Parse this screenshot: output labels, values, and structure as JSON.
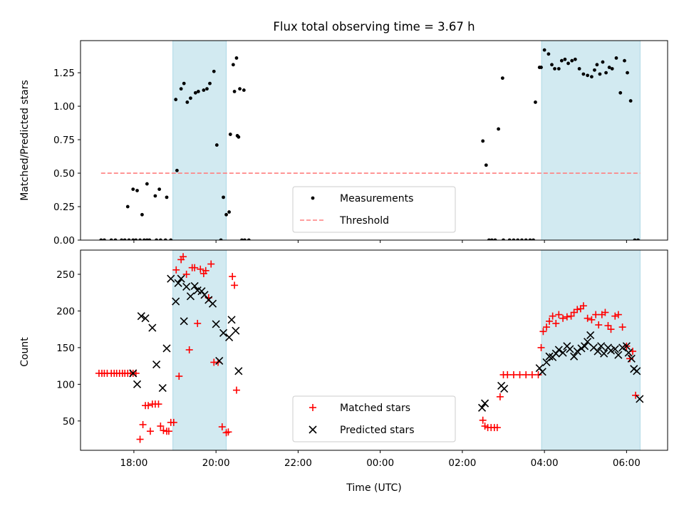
{
  "title": "Flux total observing time = 3.67 h",
  "colors": {
    "shade": "#add8e6",
    "threshold": "#ff7f7f",
    "matched": "#ff0000",
    "predicted": "#000000",
    "measurements": "#000000"
  },
  "chart_data": [
    {
      "type": "scatter",
      "panel": "top",
      "ylabel": "Matched/Predicted stars",
      "xlim": [
        -7.3,
        7.0
      ],
      "ylim": [
        0.0,
        1.49
      ],
      "y_ticks": [
        0.0,
        0.25,
        0.5,
        0.75,
        1.0,
        1.25
      ],
      "y_tick_labels": [
        "0.00",
        "0.25",
        "0.50",
        "0.75",
        "1.00",
        "1.25"
      ],
      "shaded_intervals": [
        [
          -5.05,
          -3.75
        ],
        [
          3.93,
          6.33
        ]
      ],
      "threshold": {
        "name": "Threshold",
        "y": 0.5,
        "x_range": [
          -6.8,
          6.33
        ]
      },
      "legend": {
        "placement": "lower center",
        "entries": [
          "Measurements",
          "Threshold"
        ]
      },
      "series": [
        {
          "name": "Measurements",
          "marker": "dot",
          "x": [
            -6.8,
            -6.72,
            -6.55,
            -6.45,
            -6.3,
            -6.22,
            -6.12,
            -6.02,
            -5.95,
            -5.85,
            -5.75,
            -5.68,
            -5.62,
            -5.45,
            -5.35,
            -5.23,
            -5.1,
            -4.98,
            -4.95,
            -4.85,
            -4.78,
            -4.7,
            -4.62,
            -4.5,
            -4.43,
            -4.3,
            -4.22,
            -4.15,
            -4.05,
            -3.98,
            -3.88,
            -3.82,
            -3.75,
            -3.68,
            -3.58,
            -3.5,
            -3.45,
            -3.37,
            -3.3,
            -3.2,
            -6.15,
            -6.02,
            -5.92,
            -5.8,
            -5.68,
            -5.48,
            -5.38,
            -5.2,
            -3.65,
            -3.55,
            -3.48,
            -3.42,
            -3.32,
            2.5,
            2.58,
            2.65,
            2.72,
            2.8,
            2.88,
            2.98,
            3.0,
            3.15,
            3.25,
            3.35,
            3.45,
            3.55,
            3.65,
            3.73,
            3.78,
            3.88,
            3.92,
            4.0,
            4.1,
            4.18,
            4.25,
            4.35,
            4.42,
            4.5,
            4.58,
            4.67,
            4.75,
            4.85,
            4.95,
            5.05,
            5.15,
            5.22,
            5.28,
            5.35,
            5.42,
            5.5,
            5.58,
            5.65,
            5.75,
            5.85,
            5.95,
            6.02,
            6.1,
            6.2,
            6.28
          ],
          "y": [
            0,
            0,
            0,
            0,
            0,
            0,
            0,
            0,
            0,
            0,
            0,
            0,
            0,
            0,
            0,
            0,
            0,
            1.05,
            0.52,
            1.13,
            1.17,
            1.03,
            1.06,
            1.1,
            1.11,
            1.12,
            1.13,
            1.17,
            1.26,
            0.71,
            0.0,
            0.32,
            0.19,
            0.21,
            1.31,
            1.36,
            0.77,
            0.0,
            0.0,
            0.0,
            0.25,
            0.38,
            0.37,
            0.19,
            0.42,
            0.33,
            0.38,
            0.32,
            0.79,
            1.11,
            0.78,
            1.13,
            1.12,
            0.74,
            0.56,
            0,
            0,
            0,
            0.83,
            1.21,
            0,
            0,
            0,
            0,
            0,
            0,
            0,
            0,
            1.03,
            1.29,
            1.29,
            1.42,
            1.39,
            1.31,
            1.28,
            1.28,
            1.34,
            1.35,
            1.32,
            1.34,
            1.35,
            1.28,
            1.24,
            1.23,
            1.22,
            1.27,
            1.31,
            1.24,
            1.33,
            1.25,
            1.29,
            1.28,
            1.36,
            1.1,
            1.34,
            1.25,
            1.04,
            0.0,
            0.0
          ]
        }
      ]
    },
    {
      "type": "scatter",
      "panel": "bottom",
      "xlabel": "Time (UTC)",
      "ylabel": "Count",
      "xlim": [
        -7.3,
        7.0
      ],
      "ylim": [
        10,
        283
      ],
      "x_ticks": [
        -6,
        -4,
        -2,
        0,
        2,
        4,
        6
      ],
      "x_tick_labels": [
        "18:00",
        "20:00",
        "22:00",
        "00:00",
        "02:00",
        "04:00",
        "06:00"
      ],
      "y_ticks": [
        50,
        100,
        150,
        200,
        250
      ],
      "y_tick_labels": [
        "50",
        "100",
        "150",
        "200",
        "250"
      ],
      "shaded_intervals": [
        [
          -5.05,
          -3.75
        ],
        [
          3.93,
          6.33
        ]
      ],
      "legend": {
        "placement": "lower center",
        "entries": [
          "Matched stars",
          "Predicted stars"
        ]
      },
      "series": [
        {
          "name": "Matched stars",
          "marker": "plus",
          "x": [
            -6.85,
            -6.78,
            -6.72,
            -6.65,
            -6.55,
            -6.48,
            -6.42,
            -6.35,
            -6.28,
            -6.22,
            -6.15,
            -6.08,
            -6.02,
            -5.95,
            -5.85,
            -5.78,
            -5.72,
            -5.65,
            -5.6,
            -5.55,
            -5.48,
            -5.4,
            -5.35,
            -5.28,
            -5.2,
            -5.15,
            -5.1,
            -5.03,
            -4.97,
            -4.9,
            -4.85,
            -4.8,
            -4.72,
            -4.65,
            -4.58,
            -4.52,
            -4.45,
            -4.38,
            -4.3,
            -4.25,
            -4.18,
            -4.12,
            -4.05,
            -3.95,
            -3.85,
            -3.75,
            -3.7,
            -3.6,
            -3.55,
            -3.5,
            -3.42,
            -3.35,
            2.5,
            2.55,
            2.62,
            2.7,
            2.78,
            2.85,
            2.92,
            3.0,
            3.1,
            3.25,
            3.4,
            3.55,
            3.7,
            3.85,
            3.92,
            3.97,
            4.05,
            4.12,
            4.2,
            4.28,
            4.35,
            4.45,
            4.55,
            4.65,
            4.72,
            4.8,
            4.88,
            4.95,
            5.05,
            5.15,
            5.25,
            5.32,
            5.4,
            5.48,
            5.55,
            5.62,
            5.72,
            5.8,
            5.9,
            6.0,
            6.08,
            6.15,
            6.22,
            6.28
          ],
          "y": [
            115,
            115,
            115,
            115,
            115,
            115,
            115,
            115,
            115,
            115,
            115,
            115,
            115,
            115,
            25,
            45,
            71,
            71,
            36,
            73,
            73,
            73,
            43,
            37,
            36,
            36,
            48,
            48,
            256,
            111,
            270,
            274,
            250,
            147,
            259,
            259,
            183,
            257,
            251,
            255,
            218,
            264,
            130,
            130,
            42,
            34,
            35,
            247,
            235,
            92,
            0,
            0,
            51,
            43,
            41,
            41,
            41,
            41,
            83,
            113,
            113,
            113,
            113,
            113,
            113,
            113,
            150,
            172,
            178,
            186,
            193,
            183,
            195,
            190,
            192,
            193,
            198,
            202,
            203,
            207,
            190,
            188,
            195,
            181,
            195,
            198,
            180,
            175,
            193,
            195,
            178,
            152,
            135,
            145,
            85,
            0
          ],
          "note_y_zero_unused": ""
        },
        {
          "name": "Predicted stars",
          "marker": "x",
          "x": [
            -6.02,
            -5.92,
            -5.82,
            -5.72,
            -5.55,
            -5.45,
            -5.3,
            -5.2,
            -5.1,
            -4.98,
            -4.92,
            -4.85,
            -4.78,
            -4.72,
            -4.62,
            -4.52,
            -4.45,
            -4.35,
            -4.28,
            -4.18,
            -4.08,
            -4.0,
            -3.92,
            -3.82,
            -3.68,
            -3.62,
            -3.52,
            -3.45,
            -3.38,
            -6.3,
            2.48,
            2.55,
            2.95,
            3.02,
            3.88,
            3.95,
            4.05,
            4.12,
            4.2,
            4.28,
            4.35,
            4.45,
            4.55,
            4.62,
            4.72,
            4.8,
            4.9,
            4.98,
            5.05,
            5.12,
            5.2,
            5.3,
            5.38,
            5.45,
            5.55,
            5.62,
            5.72,
            5.8,
            5.9,
            6.0,
            6.05,
            6.12,
            6.18,
            6.25,
            6.32
          ],
          "y": [
            115,
            100,
            193,
            190,
            177,
            127,
            95,
            149,
            244,
            213,
            238,
            244,
            186,
            233,
            220,
            234,
            228,
            227,
            222,
            215,
            210,
            182,
            132,
            170,
            164,
            188,
            173,
            118,
            0,
            0,
            68,
            74,
            98,
            94,
            122,
            117,
            130,
            138,
            137,
            142,
            147,
            143,
            152,
            148,
            138,
            145,
            149,
            152,
            158,
            167,
            150,
            145,
            152,
            142,
            150,
            146,
            148,
            140,
            150,
            152,
            143,
            135,
            121,
            118,
            80
          ],
          "note_y_zero_unused": ""
        }
      ]
    }
  ]
}
